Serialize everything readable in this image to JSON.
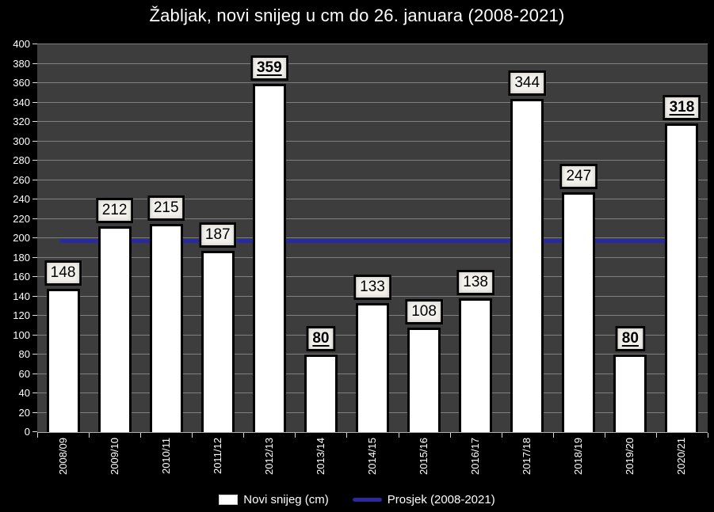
{
  "title": "Žabljak, novi snijeg u cm do 26. januara (2008-2021)",
  "legend": {
    "bars_label": "Novi snijeg (cm)",
    "line_label": "Prosjek (2008-2021)"
  },
  "colors": {
    "background": "#000000",
    "plot_background": "#3d3d3d",
    "gridline": "#808080",
    "bar_fill": "#ffffff",
    "bar_border": "#000000",
    "average_line": "#2a29a0",
    "value_label_background": "#f3f1ec",
    "axis_text": "#ffffff"
  },
  "chart_data": {
    "type": "bar",
    "title": "Žabljak, novi snijeg u cm do 26. januara (2008-2021)",
    "categories": [
      "2008/09",
      "2009/10",
      "2010/11",
      "2011/12",
      "2012/13",
      "2013/14",
      "2014/15",
      "2015/16",
      "2016/17",
      "2017/18",
      "2018/19",
      "2019/20",
      "2020/21"
    ],
    "series": [
      {
        "name": "Novi snijeg (cm)",
        "type": "bar",
        "values": [
          148,
          212,
          215,
          187,
          359,
          80,
          133,
          108,
          138,
          344,
          247,
          80,
          318
        ]
      },
      {
        "name": "Prosjek (2008-2021)",
        "type": "line",
        "value": 197.6
      }
    ],
    "highlighted_value_indices": [
      4,
      5,
      11,
      12
    ],
    "xlabel": "",
    "ylabel": "",
    "ylim": [
      0,
      400
    ],
    "ytick_step": 20,
    "grid": true,
    "legend_position": "bottom",
    "x_tick_rotation_deg": 90
  }
}
